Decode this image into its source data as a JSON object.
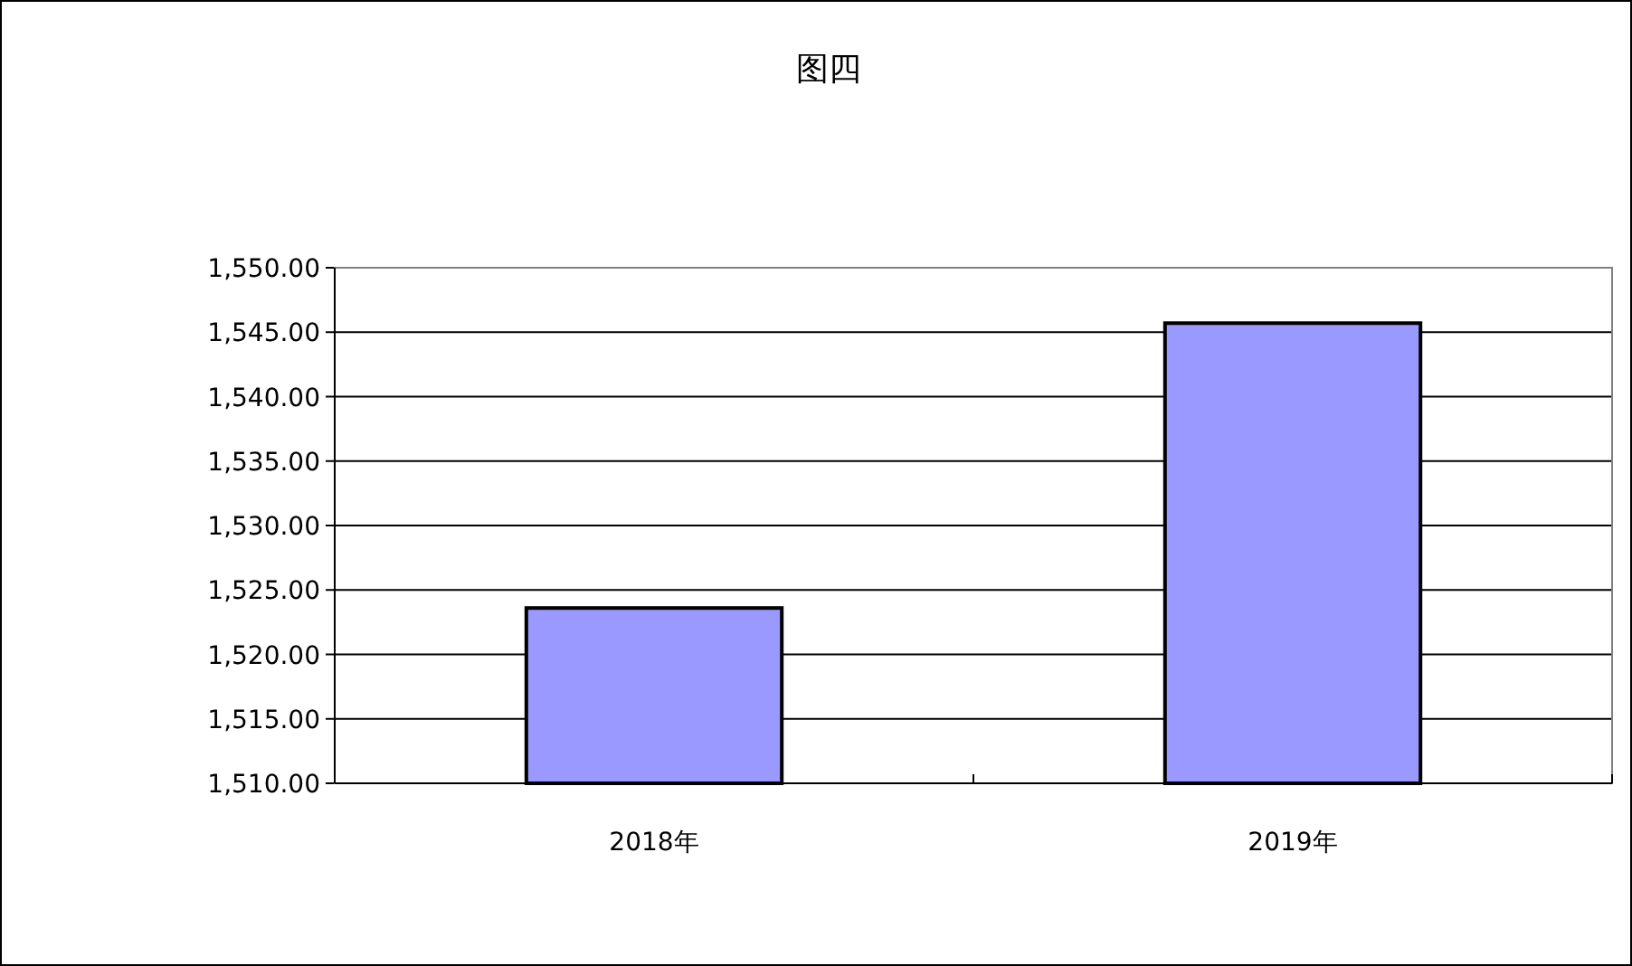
{
  "chart_data": {
    "type": "bar",
    "title": "图四",
    "categories": [
      "2018年",
      "2019年"
    ],
    "values": [
      1523.6,
      1545.7
    ],
    "color": "#9999ff",
    "ylim": [
      1510,
      1550
    ],
    "yticks": [
      {
        "value": 1510,
        "label": "1,510.00"
      },
      {
        "value": 1515,
        "label": "1,515.00"
      },
      {
        "value": 1520,
        "label": "1,520.00"
      },
      {
        "value": 1525,
        "label": "1,525.00"
      },
      {
        "value": 1530,
        "label": "1,530.00"
      },
      {
        "value": 1535,
        "label": "1,535.00"
      },
      {
        "value": 1540,
        "label": "1,540.00"
      },
      {
        "value": 1545,
        "label": "1,545.00"
      },
      {
        "value": 1550,
        "label": "1,550.00"
      }
    ],
    "grid": "y"
  }
}
